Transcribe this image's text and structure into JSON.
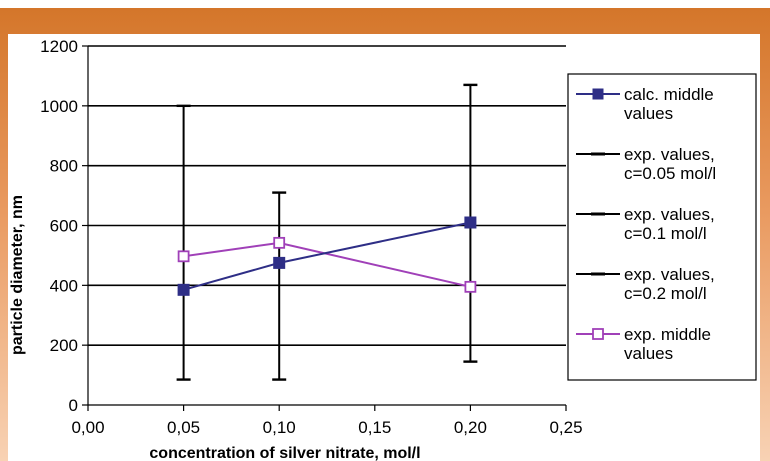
{
  "chart_data": {
    "type": "line",
    "title": "",
    "xlabel": "concentration of silver nitrate, mol/l",
    "ylabel": "particle diameter, nm",
    "xlim": [
      0,
      0.25
    ],
    "ylim": [
      0,
      1200
    ],
    "x_ticks": [
      0,
      0.05,
      0.1,
      0.15,
      0.2,
      0.25
    ],
    "x_tick_labels": [
      "0,00",
      "0,05",
      "0,10",
      "0,15",
      "0,20",
      "0,25"
    ],
    "y_ticks": [
      0,
      200,
      400,
      600,
      800,
      1000,
      1200
    ],
    "y_tick_labels": [
      "0",
      "200",
      "400",
      "600",
      "800",
      "1000",
      "1200"
    ],
    "grid": "horizontal",
    "legend_position": "right",
    "series": [
      {
        "name": "calc. middle values",
        "style": "line-filled-square",
        "color": "#2e2e86",
        "x": [
          0.05,
          0.1,
          0.2
        ],
        "y": [
          385,
          475,
          610
        ]
      },
      {
        "name": "exp. values, c=0.05 mol/l",
        "style": "error-range",
        "color": "#000000",
        "x": 0.05,
        "min": 85,
        "max": 1000
      },
      {
        "name": "exp. values, c=0.1 mol/l",
        "style": "error-range",
        "color": "#000000",
        "x": 0.1,
        "min": 85,
        "max": 710
      },
      {
        "name": "exp. values, c=0.2 mol/l",
        "style": "error-range",
        "color": "#000000",
        "x": 0.2,
        "min": 145,
        "max": 1070
      },
      {
        "name": "exp. middle values",
        "style": "line-open-square",
        "color": "#a040b8",
        "x": [
          0.05,
          0.1,
          0.2
        ],
        "y": [
          497,
          542,
          395
        ]
      }
    ],
    "legend": [
      {
        "lines": [
          "calc. middle",
          "values"
        ],
        "marker": "filled-square",
        "color": "#2e2e86"
      },
      {
        "lines": [
          "exp. values,",
          "c=0.05 mol/l"
        ],
        "marker": "dash",
        "color": "#000000"
      },
      {
        "lines": [
          "exp. values,",
          "c=0.1 mol/l"
        ],
        "marker": "dash",
        "color": "#000000"
      },
      {
        "lines": [
          "exp. values,",
          "c=0.2 mol/l"
        ],
        "marker": "dash",
        "color": "#000000"
      },
      {
        "lines": [
          "exp. middle",
          "values"
        ],
        "marker": "open-square",
        "color": "#a040b8"
      }
    ]
  },
  "colors": {
    "frame_top": "#d4762a",
    "frame_bottom": "#f6c9a6",
    "panel": "#ffffff"
  }
}
